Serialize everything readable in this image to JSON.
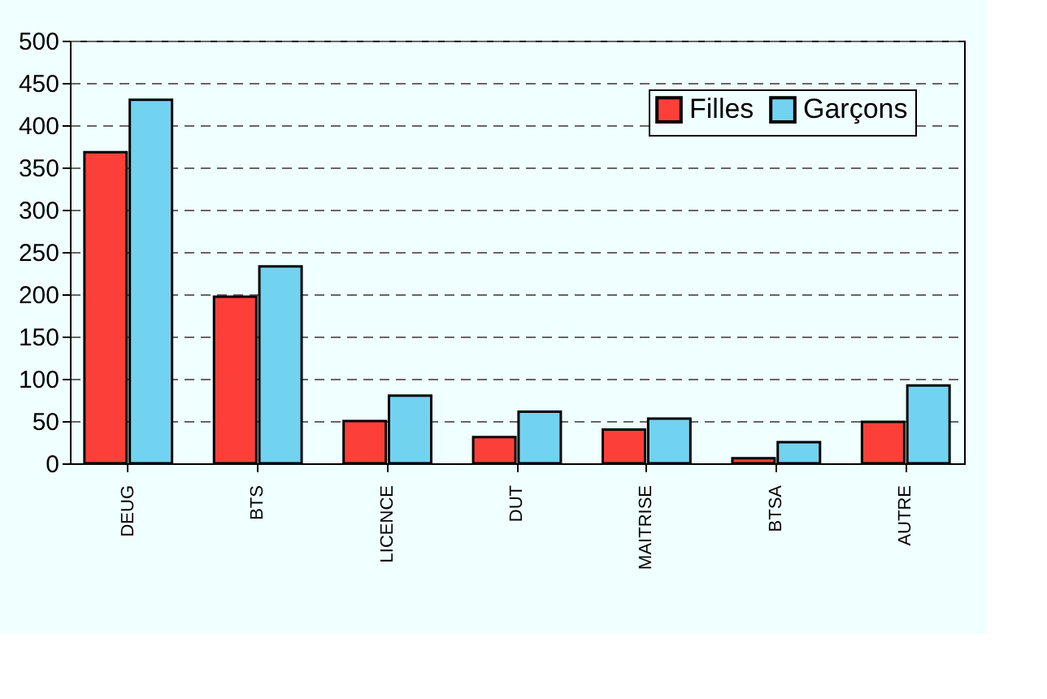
{
  "chart_data": {
    "type": "bar",
    "categories": [
      "DEUG",
      "BTS",
      "LICENCE",
      "DUT",
      "MAITRISE",
      "BTSA",
      "AUTRE"
    ],
    "series": [
      {
        "name": "Filles",
        "color": "#fc4039",
        "values": [
          368,
          197,
          50,
          31,
          40,
          6,
          49
        ]
      },
      {
        "name": "Garçons",
        "color": "#72d3f0",
        "values": [
          430,
          233,
          80,
          61,
          53,
          25,
          92
        ]
      }
    ],
    "ylim": [
      0,
      500
    ],
    "yticks": [
      0,
      50,
      100,
      150,
      200,
      250,
      300,
      350,
      400,
      450,
      500
    ],
    "grid": "y",
    "legend": "top right"
  }
}
